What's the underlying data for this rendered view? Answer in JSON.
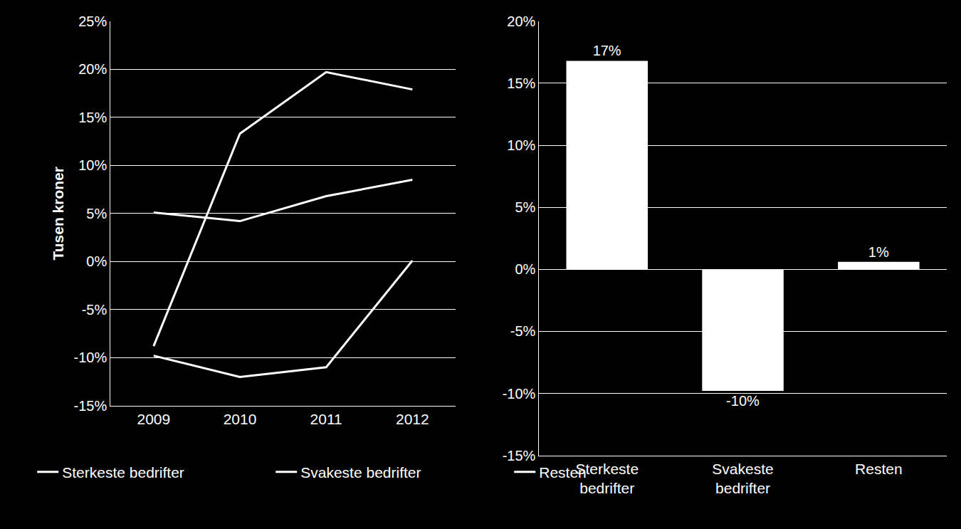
{
  "chart_data": [
    {
      "type": "line",
      "y_label": "Tusen kroner",
      "categories": [
        "2009",
        "2010",
        "2011",
        "2012"
      ],
      "series": [
        {
          "name": "Sterkeste bedrifter",
          "color": "#ffffff",
          "values": [
            -8.8,
            13.3,
            19.7,
            17.9
          ]
        },
        {
          "name": "Svakeste bedrifter",
          "color": "#ffffff",
          "values": [
            -9.8,
            -12.0,
            -11.0,
            0.1
          ]
        },
        {
          "name": "Resten",
          "color": "#ffffff",
          "values": [
            5.1,
            4.2,
            6.8,
            8.5
          ]
        }
      ],
      "ylim": [
        -15,
        25
      ],
      "yticks": [
        {
          "value": -15,
          "label": "-15%"
        },
        {
          "value": -10,
          "label": "-10%"
        },
        {
          "value": -5,
          "label": "-5%"
        },
        {
          "value": 0,
          "label": "0%"
        },
        {
          "value": 5,
          "label": "5%"
        },
        {
          "value": 10,
          "label": "10%"
        },
        {
          "value": 15,
          "label": "15%"
        },
        {
          "value": 20,
          "label": "20%"
        },
        {
          "value": 25,
          "label": "25%"
        }
      ],
      "grid": true,
      "legend": "bottom"
    },
    {
      "type": "bar",
      "categories": [
        "Sterkeste bedrifter",
        "Svakeste bedrifter",
        "Resten"
      ],
      "values": [
        16.8,
        -9.8,
        0.6
      ],
      "value_labels": [
        "17%",
        "-10%",
        "1%"
      ],
      "color": "#ffffff",
      "data_labels": true,
      "ylim": [
        -15,
        20
      ],
      "yticks": [
        {
          "value": -15,
          "label": "-15%"
        },
        {
          "value": -10,
          "label": "-10%"
        },
        {
          "value": -5,
          "label": "-5%"
        },
        {
          "value": 0,
          "label": "0%"
        },
        {
          "value": 5,
          "label": "5%"
        },
        {
          "value": 10,
          "label": "10%"
        },
        {
          "value": 15,
          "label": "15%"
        },
        {
          "value": 20,
          "label": "20%"
        }
      ],
      "grid": true
    }
  ]
}
